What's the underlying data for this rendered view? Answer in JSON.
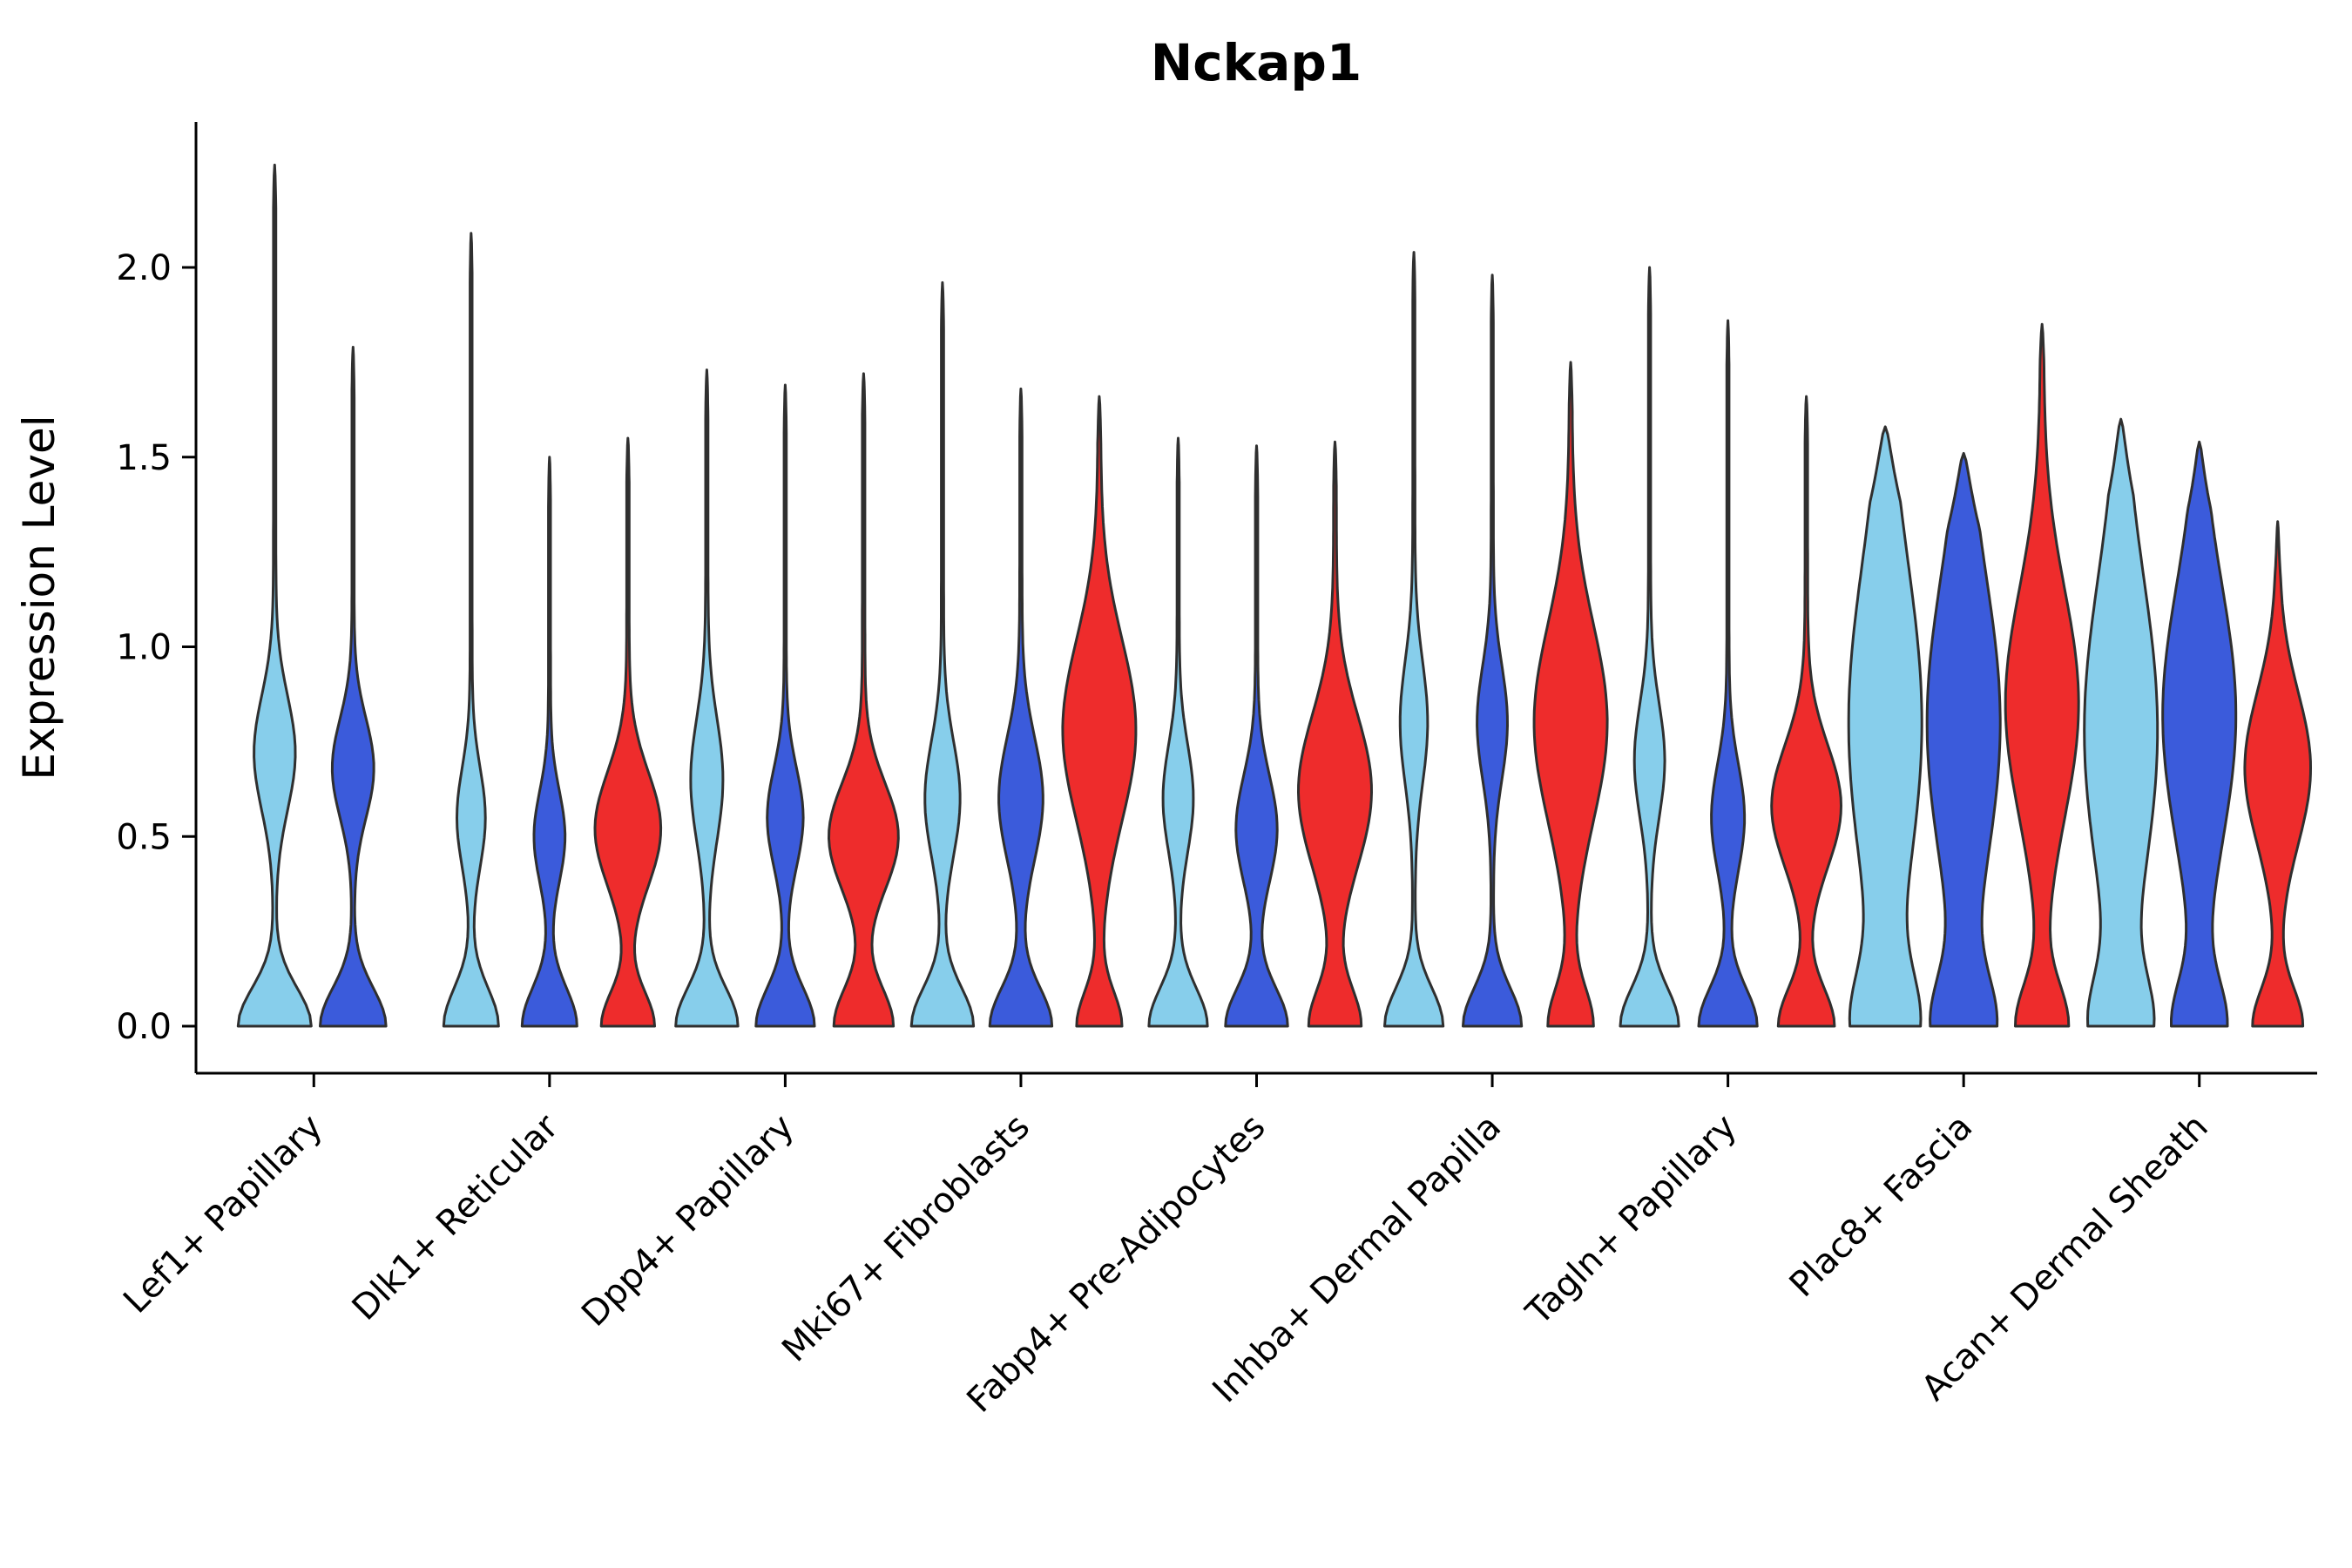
{
  "title": "Nckap1",
  "y_axis": {
    "label": "Expression Level",
    "ticks": [
      "0.0",
      "0.5",
      "1.0",
      "1.5",
      "2.0"
    ],
    "tick_values": [
      0.0,
      0.5,
      1.0,
      1.5,
      2.0
    ]
  },
  "colors": {
    "skyblue": "#87CEEB",
    "royalblue": "#3B5BDB",
    "red": "#EE2C2C",
    "edge": "#2F2F2F",
    "axis": "#000000",
    "background": "#ffffff"
  },
  "chart_data": {
    "type": "violin",
    "title": "Nckap1",
    "xlabel": "",
    "ylabel": "Expression Level",
    "ylim": [
      0,
      2.35
    ],
    "grid": false,
    "legend": "none",
    "categories": [
      "Lef1+ Papillary",
      "Dlk1+ Reticular",
      "Dpp4+ Papillary",
      "Mki67+ Fibroblasts",
      "Fabp4+ Pre-Adipocytes",
      "Inhba+ Dermal Papilla",
      "Tagln+ Papillary",
      "Plac8+ Fascia",
      "Acan+ Dermal Sheath"
    ],
    "groups": [
      "skyblue",
      "royalblue",
      "red"
    ],
    "violins": [
      {
        "category": "Lef1+ Papillary",
        "group": "skyblue",
        "max": 2.27,
        "scale": 1.0,
        "stem": 0.035,
        "taper": 0.12,
        "bumps": [
          [
            0,
            0.1,
            1.0
          ],
          [
            0.72,
            0.15,
            0.55
          ]
        ]
      },
      {
        "category": "Lef1+ Papillary",
        "group": "royalblue",
        "max": 1.79,
        "scale": 0.9,
        "stem": 0.035,
        "taper": 0.12,
        "bumps": [
          [
            0,
            0.1,
            1.0
          ],
          [
            0.68,
            0.13,
            0.62
          ]
        ]
      },
      {
        "category": "Dlk1+ Reticular",
        "group": "skyblue",
        "max": 2.09,
        "scale": 0.75,
        "stem": 0.04,
        "taper": 0.12,
        "bumps": [
          [
            0,
            0.1,
            1.0
          ],
          [
            0.55,
            0.13,
            0.5
          ]
        ]
      },
      {
        "category": "Dlk1+ Reticular",
        "group": "royalblue",
        "max": 1.5,
        "scale": 0.75,
        "stem": 0.04,
        "taper": 0.12,
        "bumps": [
          [
            0,
            0.1,
            1.0
          ],
          [
            0.5,
            0.12,
            0.55
          ]
        ]
      },
      {
        "category": "Dlk1+ Reticular",
        "group": "red",
        "max": 1.55,
        "scale": 0.9,
        "stem": 0.04,
        "taper": 0.12,
        "bumps": [
          [
            0,
            0.09,
            0.8
          ],
          [
            0.52,
            0.15,
            1.0
          ]
        ]
      },
      {
        "category": "Dpp4+ Papillary",
        "group": "skyblue",
        "max": 1.73,
        "scale": 0.85,
        "stem": 0.04,
        "taper": 0.12,
        "bumps": [
          [
            0,
            0.1,
            1.0
          ],
          [
            0.65,
            0.16,
            0.5
          ]
        ]
      },
      {
        "category": "Dpp4+ Papillary",
        "group": "royalblue",
        "max": 1.69,
        "scale": 0.8,
        "stem": 0.04,
        "taper": 0.12,
        "bumps": [
          [
            0,
            0.1,
            1.0
          ],
          [
            0.55,
            0.13,
            0.6
          ]
        ]
      },
      {
        "category": "Dpp4+ Papillary",
        "group": "red",
        "max": 1.72,
        "scale": 0.95,
        "stem": 0.04,
        "taper": 0.12,
        "bumps": [
          [
            0,
            0.1,
            0.85
          ],
          [
            0.5,
            0.14,
            1.0
          ]
        ]
      },
      {
        "category": "Mki67+ Fibroblasts",
        "group": "skyblue",
        "max": 1.96,
        "scale": 0.85,
        "stem": 0.04,
        "taper": 0.12,
        "bumps": [
          [
            0,
            0.1,
            1.0
          ],
          [
            0.6,
            0.15,
            0.55
          ]
        ]
      },
      {
        "category": "Mki67+ Fibroblasts",
        "group": "royalblue",
        "max": 1.68,
        "scale": 0.85,
        "stem": 0.04,
        "taper": 0.12,
        "bumps": [
          [
            0,
            0.1,
            1.0
          ],
          [
            0.6,
            0.16,
            0.7
          ]
        ]
      },
      {
        "category": "Mki67+ Fibroblasts",
        "group": "red",
        "max": 1.66,
        "scale": 1.0,
        "stem": 0.04,
        "taper": 0.12,
        "bumps": [
          [
            0,
            0.09,
            0.6
          ],
          [
            0.78,
            0.24,
            1.0
          ]
        ]
      },
      {
        "category": "Fabp4+ Pre-Adipocytes",
        "group": "skyblue",
        "max": 1.55,
        "scale": 0.8,
        "stem": 0.04,
        "taper": 0.12,
        "bumps": [
          [
            0,
            0.1,
            1.0
          ],
          [
            0.6,
            0.14,
            0.5
          ]
        ]
      },
      {
        "category": "Fabp4+ Pre-Adipocytes",
        "group": "royalblue",
        "max": 1.53,
        "scale": 0.85,
        "stem": 0.04,
        "taper": 0.12,
        "bumps": [
          [
            0,
            0.1,
            1.0
          ],
          [
            0.52,
            0.14,
            0.65
          ]
        ]
      },
      {
        "category": "Fabp4+ Pre-Adipocytes",
        "group": "red",
        "max": 1.54,
        "scale": 1.0,
        "stem": 0.04,
        "taper": 0.12,
        "bumps": [
          [
            0,
            0.1,
            0.7
          ],
          [
            0.62,
            0.2,
            1.0
          ]
        ]
      },
      {
        "category": "Inhba+ Dermal Papilla",
        "group": "skyblue",
        "max": 2.04,
        "scale": 0.8,
        "stem": 0.04,
        "taper": 0.12,
        "bumps": [
          [
            0,
            0.1,
            1.0
          ],
          [
            0.8,
            0.16,
            0.45
          ]
        ]
      },
      {
        "category": "Inhba+ Dermal Papilla",
        "group": "royalblue",
        "max": 1.98,
        "scale": 0.8,
        "stem": 0.04,
        "taper": 0.12,
        "bumps": [
          [
            0,
            0.1,
            1.0
          ],
          [
            0.8,
            0.15,
            0.5
          ]
        ]
      },
      {
        "category": "Inhba+ Dermal Papilla",
        "group": "red",
        "max": 1.75,
        "scale": 1.0,
        "stem": 0.04,
        "taper": 0.12,
        "bumps": [
          [
            0,
            0.1,
            0.6
          ],
          [
            0.8,
            0.26,
            1.0
          ]
        ]
      },
      {
        "category": "Tagln+ Papillary",
        "group": "skyblue",
        "max": 2.0,
        "scale": 0.8,
        "stem": 0.04,
        "taper": 0.12,
        "bumps": [
          [
            0,
            0.1,
            1.0
          ],
          [
            0.7,
            0.15,
            0.5
          ]
        ]
      },
      {
        "category": "Tagln+ Papillary",
        "group": "royalblue",
        "max": 1.86,
        "scale": 0.8,
        "stem": 0.04,
        "taper": 0.12,
        "bumps": [
          [
            0,
            0.1,
            1.0
          ],
          [
            0.55,
            0.14,
            0.55
          ]
        ]
      },
      {
        "category": "Tagln+ Papillary",
        "group": "red",
        "max": 1.66,
        "scale": 0.95,
        "stem": 0.04,
        "taper": 0.12,
        "bumps": [
          [
            0,
            0.1,
            0.8
          ],
          [
            0.58,
            0.16,
            1.0
          ]
        ]
      },
      {
        "category": "Plac8+ Fascia",
        "group": "skyblue",
        "max": 1.58,
        "scale": 1.0,
        "stem": 0.06,
        "taper": 0.2,
        "bumps": [
          [
            0,
            0.14,
            0.8
          ],
          [
            0.8,
            0.42,
            1.0
          ]
        ]
      },
      {
        "category": "Plac8+ Fascia",
        "group": "royalblue",
        "max": 1.51,
        "scale": 1.0,
        "stem": 0.06,
        "taper": 0.2,
        "bumps": [
          [
            0,
            0.13,
            0.8
          ],
          [
            0.8,
            0.38,
            1.0
          ]
        ]
      },
      {
        "category": "Plac8+ Fascia",
        "group": "red",
        "max": 1.85,
        "scale": 1.0,
        "stem": 0.045,
        "taper": 0.1,
        "bumps": [
          [
            0,
            0.11,
            0.7
          ],
          [
            0.85,
            0.3,
            1.0
          ]
        ]
      },
      {
        "category": "Acan+ Dermal Sheath",
        "group": "skyblue",
        "max": 1.6,
        "scale": 1.0,
        "stem": 0.06,
        "taper": 0.2,
        "bumps": [
          [
            0,
            0.13,
            0.75
          ],
          [
            0.78,
            0.4,
            1.0
          ]
        ]
      },
      {
        "category": "Acan+ Dermal Sheath",
        "group": "royalblue",
        "max": 1.54,
        "scale": 1.0,
        "stem": 0.055,
        "taper": 0.18,
        "bumps": [
          [
            0,
            0.12,
            0.7
          ],
          [
            0.82,
            0.34,
            1.0
          ]
        ]
      },
      {
        "category": "Acan+ Dermal Sheath",
        "group": "red",
        "max": 1.33,
        "scale": 0.9,
        "stem": 0.05,
        "taper": 0.15,
        "bumps": [
          [
            0,
            0.1,
            0.75
          ],
          [
            0.68,
            0.2,
            1.0
          ]
        ]
      }
    ]
  }
}
